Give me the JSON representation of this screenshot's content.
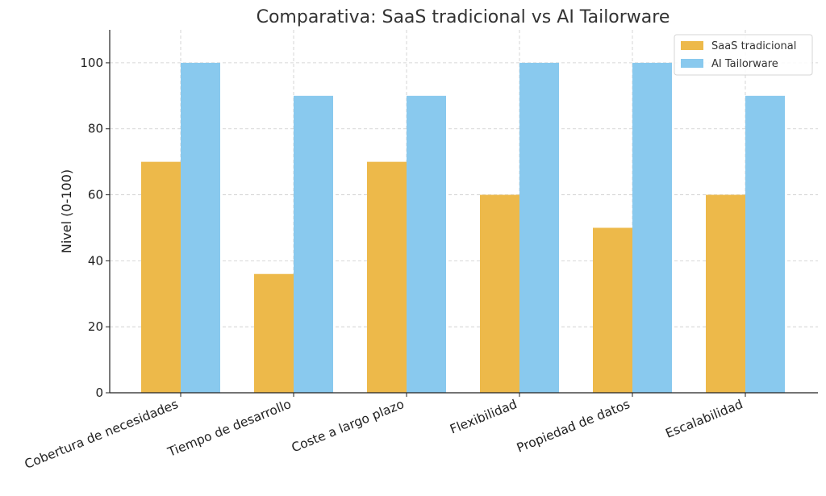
{
  "chart_data": {
    "type": "bar",
    "title": "Comparativa: SaaS tradicional vs AI Tailorware",
    "xlabel": "",
    "ylabel": "Nivel (0-100)",
    "ylim": [
      0,
      110
    ],
    "yticks": [
      0,
      20,
      40,
      60,
      80,
      100
    ],
    "grid": true,
    "legend_position": "top-right",
    "categories": [
      "Cobertura de necesidades",
      "Tiempo de desarrollo",
      "Coste a largo plazo",
      "Flexibilidad",
      "Propiedad de datos",
      "Escalabilidad"
    ],
    "series": [
      {
        "name": "SaaS tradicional",
        "color": "#EDB94A",
        "values": [
          70,
          36,
          70,
          60,
          50,
          60
        ]
      },
      {
        "name": "AI Tailorware",
        "color": "#89C9EE",
        "values": [
          100,
          90,
          90,
          100,
          100,
          90
        ]
      }
    ]
  }
}
